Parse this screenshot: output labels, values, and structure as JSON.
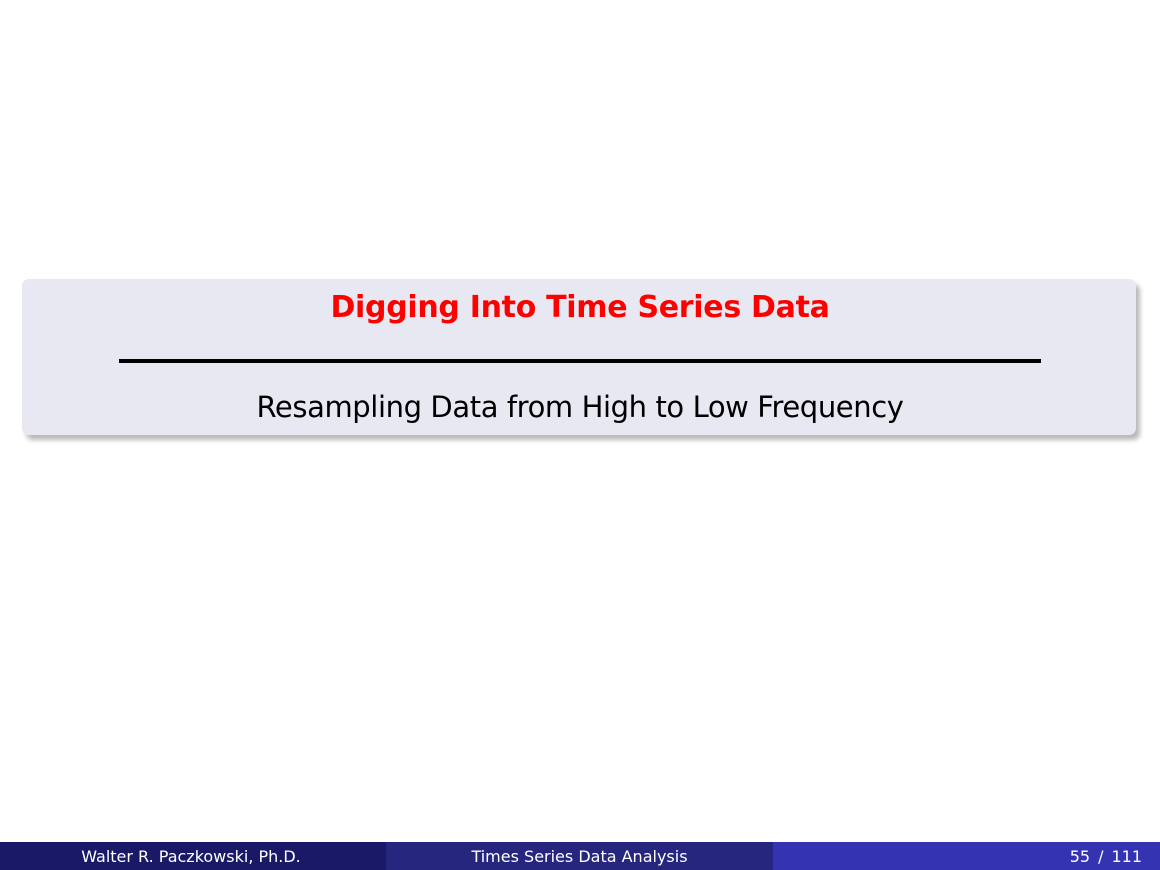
{
  "section": {
    "title": "Digging Into Time Series Data",
    "subtitle": "Resampling Data from High to Low Frequency"
  },
  "footer": {
    "author": "Walter R. Paczkowski, Ph.D.",
    "presentation_title": "Times Series Data Analysis",
    "page_current": "55",
    "page_separator": "/",
    "page_total": "111"
  },
  "colors": {
    "title": "#fe0000",
    "box_background": "#e8e8f2",
    "footer_left": "#191968",
    "footer_center": "#26267f",
    "footer_right": "#3434b3"
  }
}
